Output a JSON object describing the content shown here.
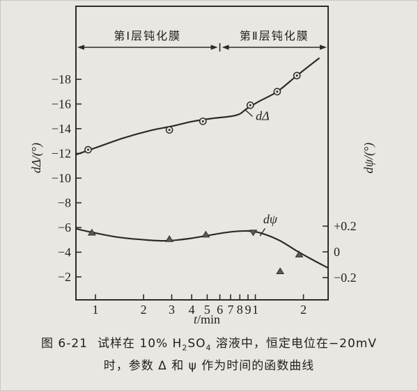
{
  "colors": {
    "paper": "#eae7e2",
    "ink": "#2b2b2b",
    "marker_fill": "#5f5b55"
  },
  "chart_data": {
    "type": "line",
    "title": "",
    "x_axis": {
      "label": "t/min",
      "label_parts": [
        "t",
        "/min"
      ],
      "scale": "log",
      "range": [
        0.75,
        28.5
      ],
      "ticks": [
        {
          "t": 1,
          "label": "1"
        },
        {
          "t": 2,
          "label": "2"
        },
        {
          "t": 3,
          "label": "3"
        },
        {
          "t": 4,
          "label": "4"
        },
        {
          "t": 5,
          "label": "5"
        },
        {
          "t": 6,
          "label": "6"
        },
        {
          "t": 7,
          "label": "7"
        },
        {
          "t": 8,
          "label": "8"
        },
        {
          "t": 9,
          "label": "9"
        },
        {
          "t": 10,
          "label": "1"
        },
        {
          "t": 20,
          "label": "2"
        }
      ]
    },
    "y_axis_left": {
      "label": "dΔ/(°)",
      "range": [
        -20,
        -1.8
      ],
      "ticks": [
        {
          "v": -18,
          "label": "−18"
        },
        {
          "v": -16,
          "label": "−16"
        },
        {
          "v": -14,
          "label": "−14"
        },
        {
          "v": -12,
          "label": "−12"
        },
        {
          "v": -10,
          "label": "−10"
        },
        {
          "v": -8,
          "label": "−8"
        },
        {
          "v": -6,
          "label": "−6"
        },
        {
          "v": -4,
          "label": "−4"
        },
        {
          "v": -2,
          "label": "−2"
        }
      ]
    },
    "y_axis_right": {
      "label": "dψ/(°)",
      "ticks": [
        {
          "v": 0.2,
          "label": "+0.2"
        },
        {
          "v": 0,
          "label": "0"
        },
        {
          "v": -0.2,
          "label": "−0.2"
        }
      ]
    },
    "series": [
      {
        "id": "d-delta",
        "name": "dΔ",
        "axis": "left",
        "marker": "circle-dot",
        "points": [
          {
            "t": 0.9,
            "v": -12.3
          },
          {
            "t": 2.9,
            "v": -13.9
          },
          {
            "t": 4.7,
            "v": -14.6
          },
          {
            "t": 9.3,
            "v": -15.9
          },
          {
            "t": 13.7,
            "v": -17.0
          },
          {
            "t": 18.2,
            "v": -18.3
          }
        ],
        "curve": [
          [
            0.755,
            -11.9
          ],
          [
            1.0,
            -12.45
          ],
          [
            1.5,
            -13.25
          ],
          [
            2.2,
            -13.85
          ],
          [
            3.0,
            -14.2
          ],
          [
            4.1,
            -14.6
          ],
          [
            5.5,
            -14.85
          ],
          [
            7.0,
            -15.0
          ],
          [
            8.0,
            -15.2
          ],
          [
            8.8,
            -15.6
          ],
          [
            10.5,
            -16.2
          ],
          [
            13.7,
            -17.0
          ],
          [
            18.2,
            -18.3
          ],
          [
            25.0,
            -19.7
          ]
        ],
        "label_at": [
          11.1,
          -15.05
        ],
        "leader": [
          [
            8.6,
            -15.55
          ],
          [
            9.6,
            -15.0
          ]
        ]
      },
      {
        "id": "d-psi",
        "name": "dψ",
        "axis": "right",
        "marker": "triangle-up",
        "points": [
          {
            "t": 0.95,
            "v": 0.15
          },
          {
            "t": 2.9,
            "v": 0.1
          },
          {
            "t": 4.9,
            "v": 0.135
          },
          {
            "t": 9.7,
            "v": 0.15,
            "marker": "triangle-down"
          },
          {
            "t": 14.3,
            "v": -0.15
          },
          {
            "t": 18.8,
            "v": -0.02
          }
        ],
        "curve": [
          [
            0.755,
            0.18
          ],
          [
            0.95,
            0.152
          ],
          [
            1.4,
            0.113
          ],
          [
            2.1,
            0.092
          ],
          [
            2.8,
            0.086
          ],
          [
            3.8,
            0.102
          ],
          [
            5.2,
            0.13
          ],
          [
            7.0,
            0.155
          ],
          [
            9.0,
            0.162
          ],
          [
            10.9,
            0.145
          ],
          [
            14.1,
            0.09
          ],
          [
            18.0,
            0.01
          ],
          [
            22.7,
            -0.06
          ],
          [
            28.3,
            -0.123
          ]
        ],
        "label_at": [
          12.4,
          0.255
        ],
        "leader": [
          [
            10.7,
            0.124
          ],
          [
            11.5,
            0.182
          ]
        ]
      }
    ],
    "region_annotations": [
      {
        "label": "第Ⅰ层钝化膜",
        "from_t": 0.755,
        "to_t": 6.0
      },
      {
        "label": "第Ⅱ层钝化膜",
        "from_t": 6.0,
        "to_t": 28.5
      }
    ],
    "legend_position": "none",
    "grid": false
  },
  "caption": {
    "figure_label": "图 6-21",
    "line1_pre": "试样在 10% H",
    "line1_sub1": "2",
    "line1_mid": "SO",
    "line1_sub2": "4",
    "line1_post": " 溶液中，恒定电位在−20mV",
    "line2": "时，参数 Δ 和 ψ 作为时间的函数曲线"
  }
}
